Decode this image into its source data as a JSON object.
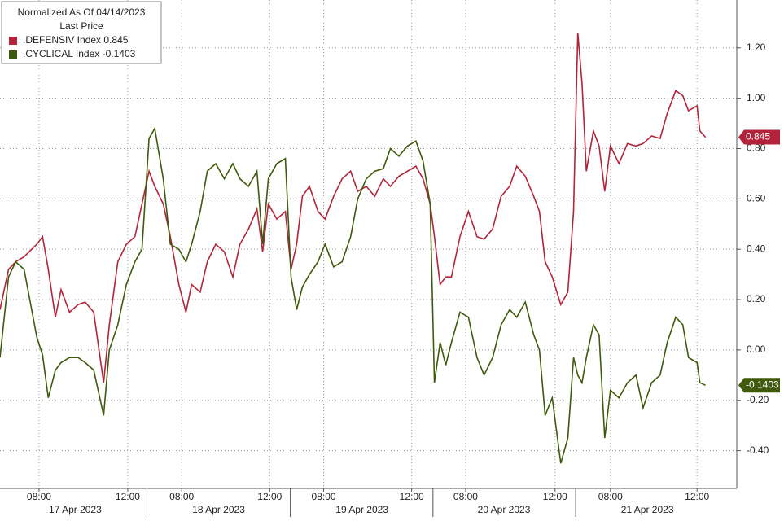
{
  "chart_data": {
    "type": "line",
    "legend_title": "Normalized As Of 04/14/2023",
    "legend_subtitle": "Last Price",
    "x": [
      0,
      0.06,
      0.11,
      0.17,
      0.26,
      0.3,
      0.34,
      0.39,
      0.43,
      0.49,
      0.55,
      0.6,
      0.66,
      0.73,
      0.77,
      0.83,
      0.89,
      0.95,
      1.0,
      1.05,
      1.09,
      1.15,
      1.2,
      1.26,
      1.31,
      1.35,
      1.41,
      1.46,
      1.52,
      1.58,
      1.64,
      1.69,
      1.75,
      1.81,
      1.85,
      1.89,
      1.95,
      2.01,
      2.05,
      2.09,
      2.13,
      2.18,
      2.24,
      2.29,
      2.35,
      2.41,
      2.47,
      2.52,
      2.58,
      2.64,
      2.7,
      2.75,
      2.81,
      2.87,
      2.93,
      2.98,
      3.03,
      3.06,
      3.1,
      3.14,
      3.18,
      3.24,
      3.3,
      3.36,
      3.41,
      3.47,
      3.53,
      3.59,
      3.64,
      3.7,
      3.76,
      3.8,
      3.84,
      3.89,
      3.95,
      4.0,
      4.04,
      4.07,
      4.1,
      4.13,
      4.18,
      4.22,
      4.26,
      4.3,
      4.36,
      4.42,
      4.48,
      4.53,
      4.59,
      4.65,
      4.7,
      4.76,
      4.81,
      4.85,
      4.91,
      4.93,
      4.97
    ],
    "series": [
      {
        "name": ".DEFENSIV Index",
        "color": "#b3243b",
        "values": [
          0.16,
          0.32,
          0.35,
          0.37,
          0.42,
          0.45,
          0.32,
          0.13,
          0.24,
          0.15,
          0.18,
          0.19,
          0.15,
          -0.13,
          0.1,
          0.35,
          0.42,
          0.45,
          0.58,
          0.71,
          0.65,
          0.58,
          0.45,
          0.26,
          0.15,
          0.26,
          0.23,
          0.35,
          0.42,
          0.39,
          0.29,
          0.42,
          0.48,
          0.56,
          0.39,
          0.58,
          0.52,
          0.55,
          0.32,
          0.42,
          0.61,
          0.65,
          0.55,
          0.52,
          0.61,
          0.68,
          0.71,
          0.63,
          0.65,
          0.61,
          0.68,
          0.65,
          0.69,
          0.71,
          0.73,
          0.68,
          0.58,
          0.45,
          0.26,
          0.29,
          0.29,
          0.45,
          0.55,
          0.45,
          0.44,
          0.48,
          0.61,
          0.65,
          0.73,
          0.69,
          0.61,
          0.55,
          0.35,
          0.29,
          0.18,
          0.23,
          0.55,
          1.26,
          1.06,
          0.71,
          0.87,
          0.81,
          0.63,
          0.81,
          0.74,
          0.82,
          0.81,
          0.82,
          0.85,
          0.84,
          0.94,
          1.03,
          1.01,
          0.95,
          0.97,
          0.87,
          0.845
        ]
      },
      {
        "name": ".CYCLICAL Index",
        "color": "#3f5a0c",
        "values": [
          -0.03,
          0.29,
          0.35,
          0.32,
          0.05,
          -0.02,
          -0.19,
          -0.08,
          -0.05,
          -0.03,
          -0.03,
          -0.05,
          -0.08,
          -0.26,
          0.0,
          0.1,
          0.26,
          0.35,
          0.4,
          0.84,
          0.88,
          0.68,
          0.42,
          0.4,
          0.35,
          0.42,
          0.55,
          0.71,
          0.74,
          0.68,
          0.74,
          0.68,
          0.65,
          0.71,
          0.42,
          0.68,
          0.74,
          0.76,
          0.29,
          0.16,
          0.25,
          0.3,
          0.35,
          0.42,
          0.33,
          0.35,
          0.45,
          0.6,
          0.68,
          0.71,
          0.72,
          0.8,
          0.77,
          0.81,
          0.83,
          0.75,
          0.58,
          -0.13,
          0.03,
          -0.06,
          0.03,
          0.15,
          0.13,
          -0.03,
          -0.1,
          -0.03,
          0.1,
          0.16,
          0.13,
          0.19,
          0.06,
          0.0,
          -0.26,
          -0.19,
          -0.45,
          -0.35,
          -0.03,
          -0.1,
          -0.13,
          -0.03,
          0.1,
          0.06,
          -0.35,
          -0.16,
          -0.19,
          -0.13,
          -0.1,
          -0.23,
          -0.13,
          -0.1,
          0.03,
          0.13,
          0.1,
          -0.03,
          -0.05,
          -0.13,
          -0.1403
        ]
      }
    ],
    "xlim": [
      0,
      5.19
    ],
    "xticks": [
      {
        "value": 0.275,
        "label": "08:00"
      },
      {
        "value": 0.9,
        "label": "12:00"
      },
      {
        "value": 1.28,
        "label": "08:00"
      },
      {
        "value": 1.9,
        "label": "12:00"
      },
      {
        "value": 2.28,
        "label": "08:00"
      },
      {
        "value": 2.9,
        "label": "12:00"
      },
      {
        "value": 3.28,
        "label": "08:00"
      },
      {
        "value": 3.91,
        "label": "12:00"
      },
      {
        "value": 4.3,
        "label": "08:00"
      },
      {
        "value": 4.91,
        "label": "12:00"
      }
    ],
    "days": [
      {
        "value": 0.53,
        "label": "17 Apr 2023"
      },
      {
        "value": 1.54,
        "label": "18 Apr 2023"
      },
      {
        "value": 2.55,
        "label": "19 Apr 2023"
      },
      {
        "value": 3.55,
        "label": "20 Apr 2023"
      },
      {
        "value": 4.56,
        "label": "21 Apr 2023"
      }
    ],
    "ylim": [
      -0.55,
      1.39
    ],
    "yticks": [
      {
        "value": -0.4,
        "label": "-0.40"
      },
      {
        "value": -0.2,
        "label": "-0.20"
      },
      {
        "value": 0,
        "label": "0.00"
      },
      {
        "value": 0.2,
        "label": "0.20"
      },
      {
        "value": 0.4,
        "label": "0.40"
      },
      {
        "value": 0.6,
        "label": "0.60"
      },
      {
        "value": 0.8,
        "label": "0.80"
      },
      {
        "value": 1.0,
        "label": "1.00"
      },
      {
        "value": 1.2,
        "label": "1.20"
      }
    ],
    "grid": true
  }
}
